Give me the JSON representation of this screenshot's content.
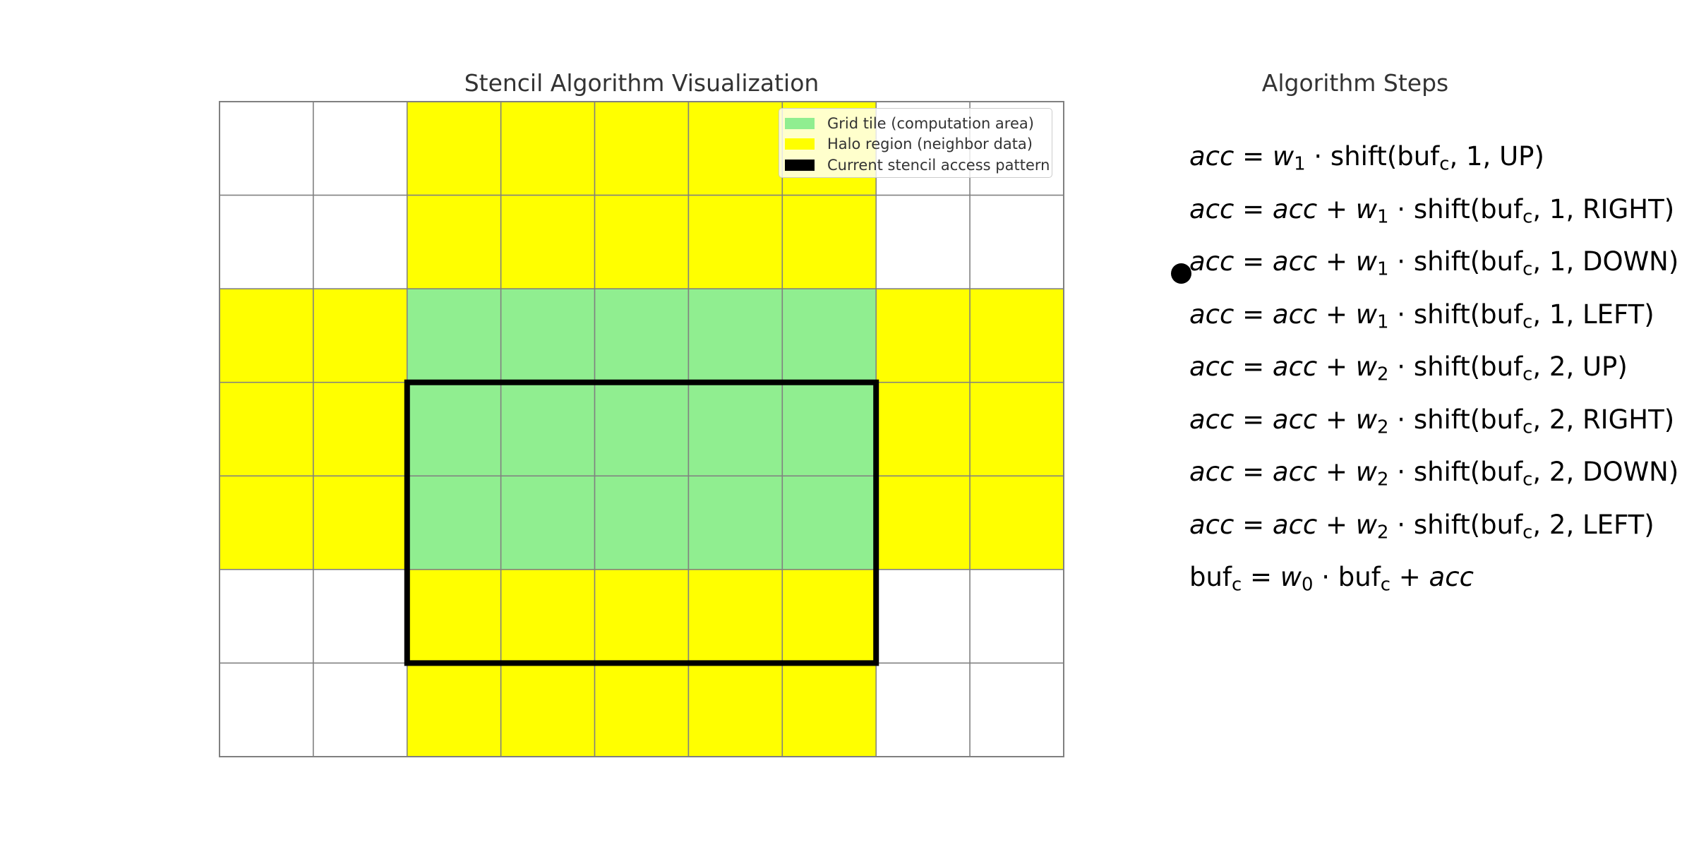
{
  "grid_title": "Stencil Algorithm Visualization",
  "steps_title": "Algorithm Steps",
  "legend": [
    {
      "label": "Grid tile (computation area)",
      "color": "#90ee90"
    },
    {
      "label": "Halo region (neighbor data)",
      "color": "#ffff00"
    },
    {
      "label": "Current stencil access pattern",
      "color": "#000000"
    }
  ],
  "colors": {
    "tile": "#90ee90",
    "halo": "#ffff00",
    "empty": "#ffffff",
    "grid_line": "#808080",
    "access_outline": "#000000"
  },
  "grid": {
    "rows": 7,
    "cols": 9,
    "cells": [
      [
        "empty",
        "empty",
        "halo",
        "halo",
        "halo",
        "halo",
        "halo",
        "empty",
        "empty"
      ],
      [
        "empty",
        "empty",
        "halo",
        "halo",
        "halo",
        "halo",
        "halo",
        "empty",
        "empty"
      ],
      [
        "halo",
        "halo",
        "tile",
        "tile",
        "tile",
        "tile",
        "tile",
        "halo",
        "halo"
      ],
      [
        "halo",
        "halo",
        "tile",
        "tile",
        "tile",
        "tile",
        "tile",
        "halo",
        "halo"
      ],
      [
        "halo",
        "halo",
        "tile",
        "tile",
        "tile",
        "tile",
        "tile",
        "halo",
        "halo"
      ],
      [
        "empty",
        "empty",
        "halo",
        "halo",
        "halo",
        "halo",
        "halo",
        "empty",
        "empty"
      ],
      [
        "empty",
        "empty",
        "halo",
        "halo",
        "halo",
        "halo",
        "halo",
        "empty",
        "empty"
      ]
    ],
    "access_pattern": {
      "row_start": 3,
      "row_end": 5,
      "col_start": 2,
      "col_end": 6
    }
  },
  "current_step": 2,
  "steps": [
    {
      "lhs": "acc",
      "acc_term": false,
      "weight": "1",
      "dist": "1",
      "dir": "UP"
    },
    {
      "lhs": "acc",
      "acc_term": true,
      "weight": "1",
      "dist": "1",
      "dir": "RIGHT"
    },
    {
      "lhs": "acc",
      "acc_term": true,
      "weight": "1",
      "dist": "1",
      "dir": "DOWN"
    },
    {
      "lhs": "acc",
      "acc_term": true,
      "weight": "1",
      "dist": "1",
      "dir": "LEFT"
    },
    {
      "lhs": "acc",
      "acc_term": true,
      "weight": "2",
      "dist": "2",
      "dir": "UP"
    },
    {
      "lhs": "acc",
      "acc_term": true,
      "weight": "2",
      "dist": "2",
      "dir": "RIGHT"
    },
    {
      "lhs": "acc",
      "acc_term": true,
      "weight": "2",
      "dist": "2",
      "dir": "DOWN"
    },
    {
      "lhs": "acc",
      "acc_term": true,
      "weight": "2",
      "dist": "2",
      "dir": "LEFT"
    }
  ],
  "final_step": {
    "buf": "buf",
    "sub": "c",
    "weight": "0",
    "acc": "acc"
  }
}
